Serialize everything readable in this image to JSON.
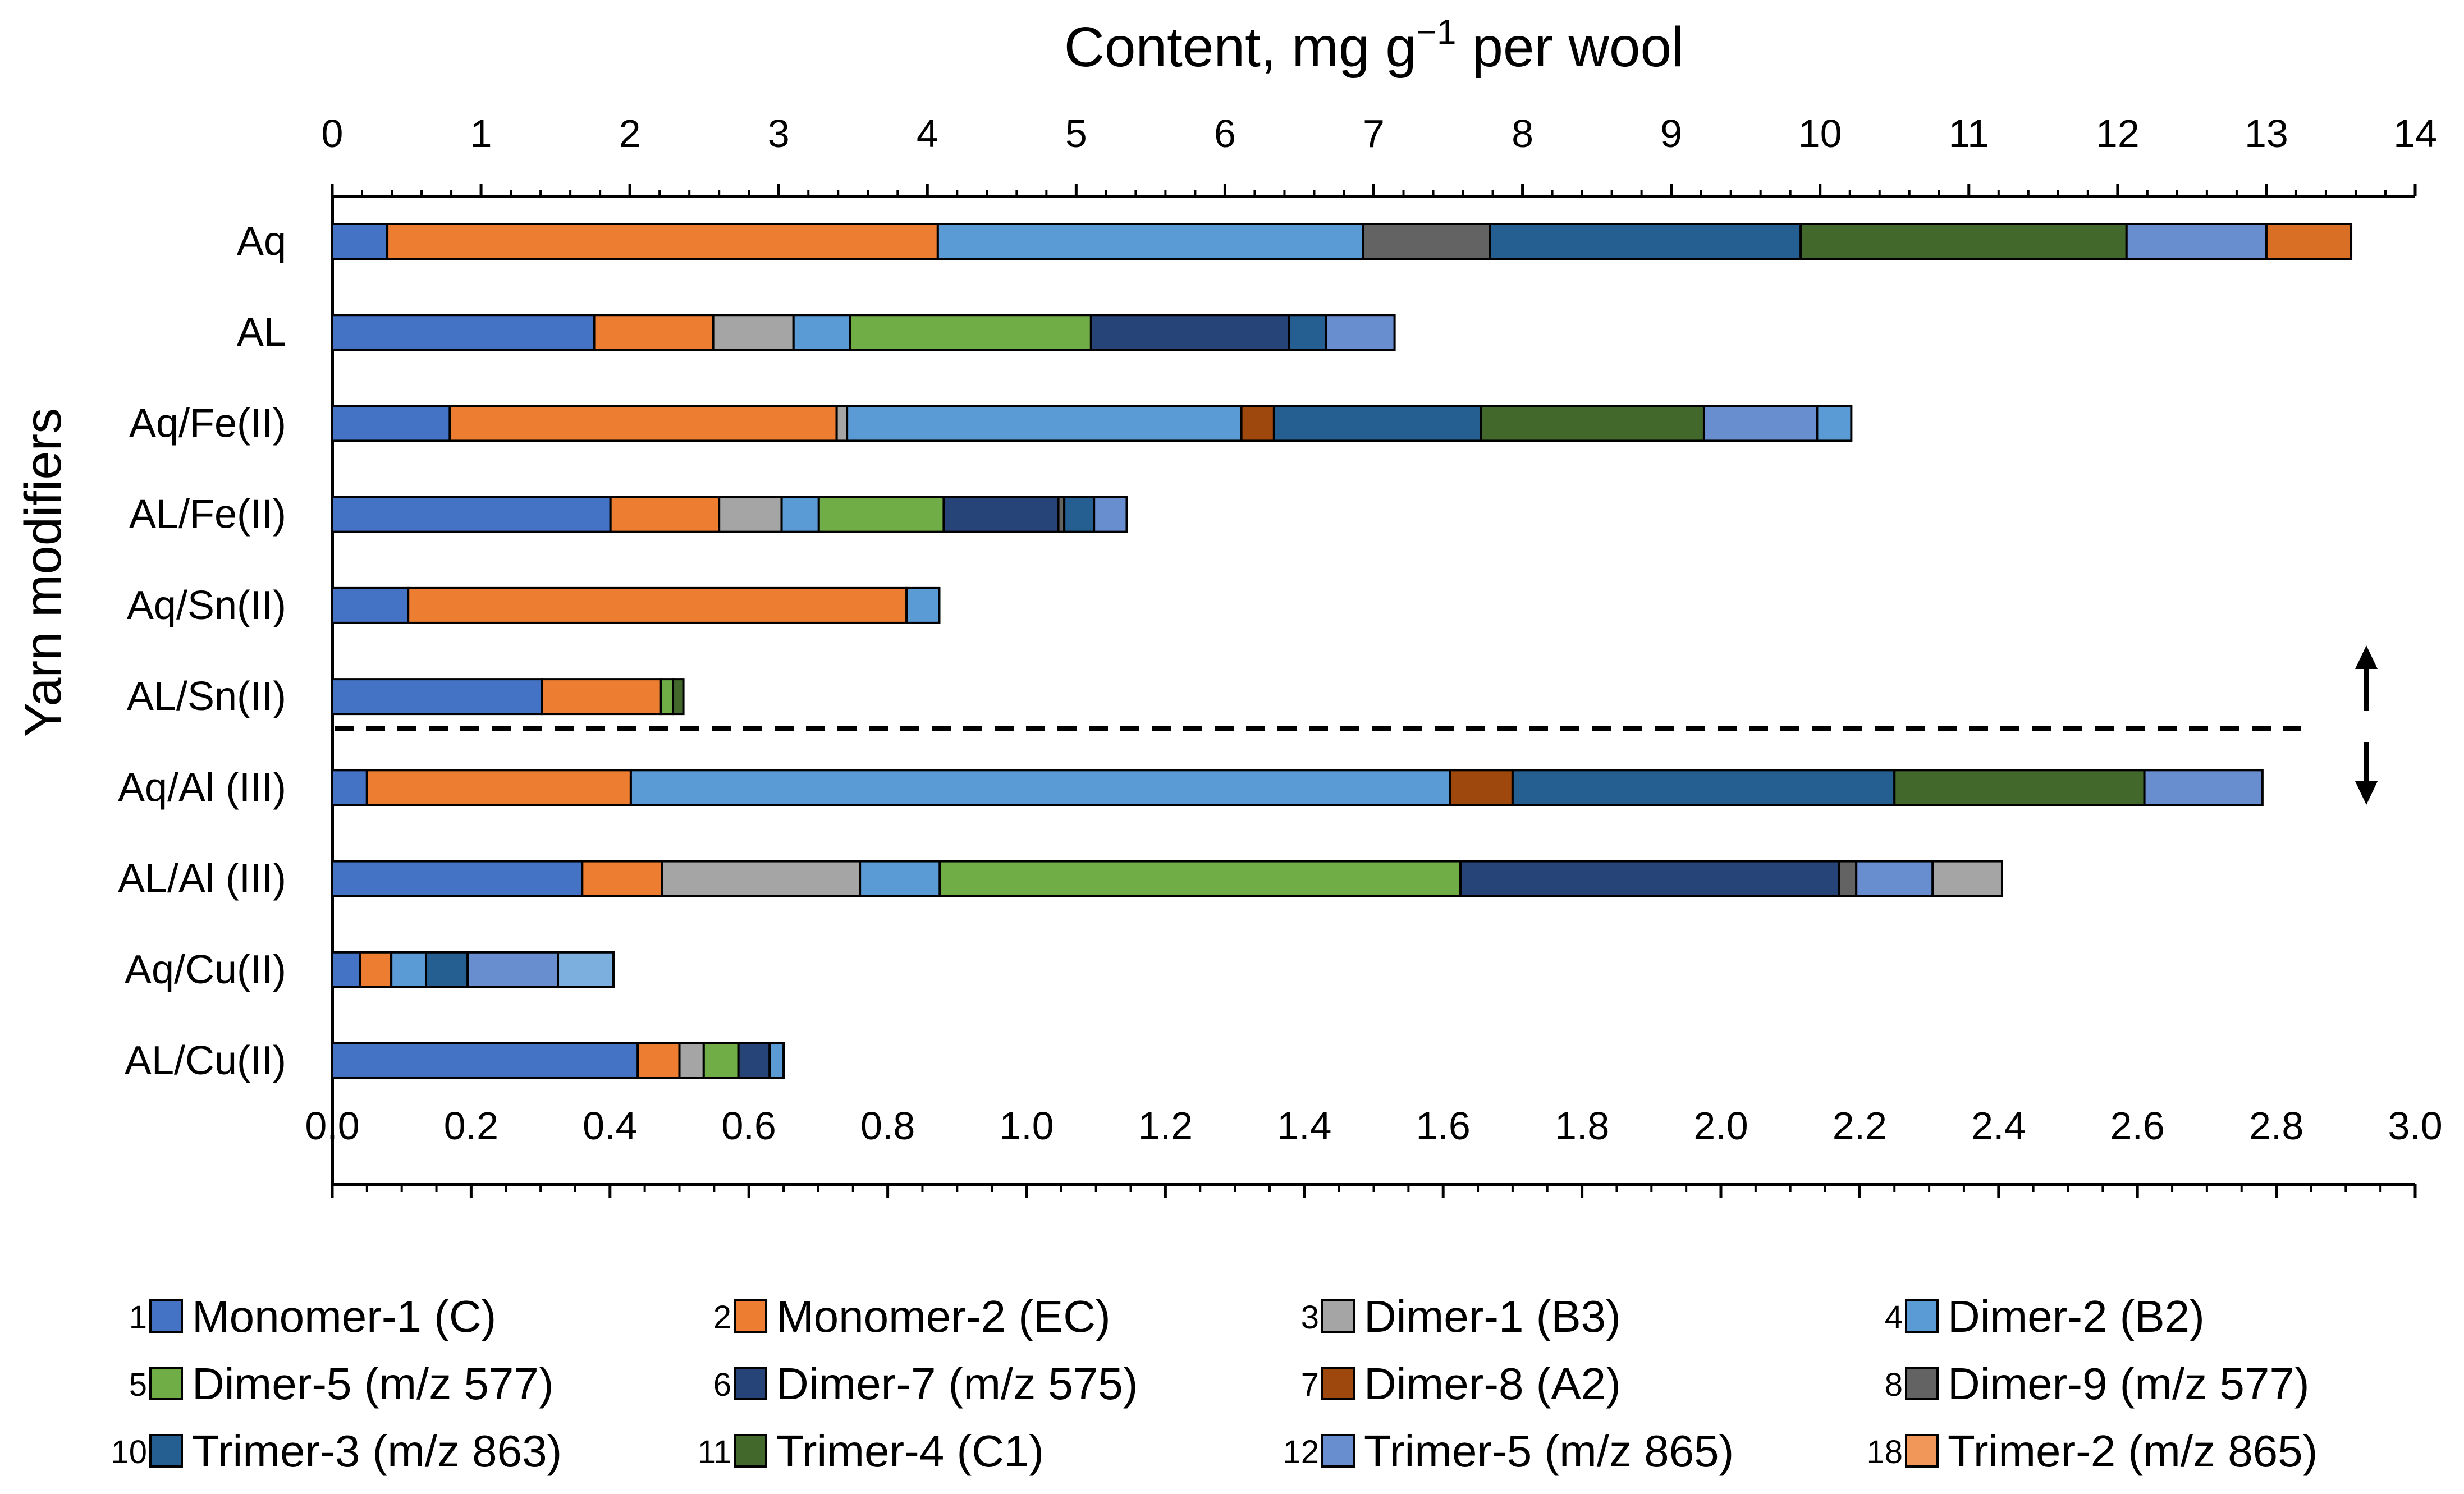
{
  "chart_data": {
    "type": "stacked-bar-horizontal",
    "title_main": "Content, mg g",
    "title_sup": "−1",
    "title_rest": " per wool",
    "ylabel": "Yarn modifiers",
    "top_axis": {
      "min": 0,
      "max": 14,
      "ticks": [
        "0",
        "1",
        "2",
        "3",
        "4",
        "5",
        "6",
        "7",
        "8",
        "9",
        "10",
        "11",
        "12",
        "13",
        "14"
      ]
    },
    "bottom_axis": {
      "min": 0,
      "max": 3.0,
      "ticks": [
        "0.0",
        "0.2",
        "0.4",
        "0.6",
        "0.8",
        "1.0",
        "1.2",
        "1.4",
        "1.6",
        "1.8",
        "2.0",
        "2.2",
        "2.4",
        "2.6",
        "2.8",
        "3.0"
      ]
    },
    "separator_note": "upper six bars read on top axis; lower four on bottom axis",
    "legend": [
      {
        "num": "1",
        "key": "m1",
        "label": "Monomer-1 (C)",
        "color": "#4472C4"
      },
      {
        "num": "2",
        "key": "m2",
        "label": "Monomer-2 (EC)",
        "color": "#ED7D31"
      },
      {
        "num": "3",
        "key": "d1",
        "label": "Dimer-1 (B3)",
        "color": "#A5A5A5"
      },
      {
        "num": "4",
        "key": "d2",
        "label": "Dimer-2 (B2)",
        "color": "#5B9BD5"
      },
      {
        "num": "5",
        "key": "d5",
        "label": "Dimer-5 (m/z 577)",
        "color": "#70AD47"
      },
      {
        "num": "6",
        "key": "d7",
        "label": "Dimer-7 (m/z 575)",
        "color": "#264478"
      },
      {
        "num": "7",
        "key": "d8",
        "label": "Dimer-8 (A2)",
        "color": "#9E480E"
      },
      {
        "num": "8",
        "key": "d9",
        "label": "Dimer-9 (m/z 577)",
        "color": "#636363"
      },
      {
        "num": "10",
        "key": "t3",
        "label": "Trimer-3 (m/z 863)",
        "color": "#255E91"
      },
      {
        "num": "11",
        "key": "t4",
        "label": "Trimer-4 (C1)",
        "color": "#43682B"
      },
      {
        "num": "12",
        "key": "t5",
        "label": "Trimer-5 (m/z 865)",
        "color": "#698ED0"
      },
      {
        "num": "18",
        "key": "t2",
        "label": "Trimer-2 (m/z 865)",
        "color": "#F1975A"
      }
    ],
    "extra_colors": {
      "t2_bar": "#D86F25",
      "aqcu_last": "#7CAFDD"
    },
    "bars": [
      {
        "label": "Aq",
        "axis": "top",
        "segments": [
          {
            "key": "m1",
            "value": 0.37
          },
          {
            "key": "m2",
            "value": 3.7
          },
          {
            "key": "d2",
            "value": 2.86
          },
          {
            "key": "d9",
            "value": 0.85
          },
          {
            "key": "t3",
            "value": 2.09
          },
          {
            "key": "t4",
            "value": 2.19
          },
          {
            "key": "t5",
            "value": 0.94
          },
          {
            "key": "t2",
            "value": 0.57
          }
        ]
      },
      {
        "label": "AL",
        "axis": "top",
        "segments": [
          {
            "key": "m1",
            "value": 1.76
          },
          {
            "key": "m2",
            "value": 0.8
          },
          {
            "key": "d1",
            "value": 0.54
          },
          {
            "key": "d2",
            "value": 0.38
          },
          {
            "key": "d5",
            "value": 1.62
          },
          {
            "key": "d7",
            "value": 1.33
          },
          {
            "key": "t3",
            "value": 0.25
          },
          {
            "key": "t5",
            "value": 0.46
          }
        ]
      },
      {
        "label": "Aq/Fe(II)",
        "axis": "top",
        "segments": [
          {
            "key": "m1",
            "value": 0.79
          },
          {
            "key": "m2",
            "value": 2.6
          },
          {
            "key": "d1",
            "value": 0.07
          },
          {
            "key": "d2",
            "value": 2.65
          },
          {
            "key": "d8",
            "value": 0.22
          },
          {
            "key": "t3",
            "value": 1.39
          },
          {
            "key": "t4",
            "value": 1.5
          },
          {
            "key": "t5",
            "value": 0.76
          },
          {
            "key": "d2",
            "value": 0.23
          }
        ]
      },
      {
        "label": "AL/Fe(II)",
        "axis": "top",
        "segments": [
          {
            "key": "m1",
            "value": 1.87
          },
          {
            "key": "m2",
            "value": 0.73
          },
          {
            "key": "d1",
            "value": 0.42
          },
          {
            "key": "d2",
            "value": 0.25
          },
          {
            "key": "d5",
            "value": 0.84
          },
          {
            "key": "d7",
            "value": 0.77
          },
          {
            "key": "d9",
            "value": 0.04
          },
          {
            "key": "t3",
            "value": 0.2
          },
          {
            "key": "t5",
            "value": 0.22
          }
        ]
      },
      {
        "label": "Aq/Sn(II)",
        "axis": "top",
        "segments": [
          {
            "key": "m1",
            "value": 0.51
          },
          {
            "key": "m2",
            "value": 3.35
          },
          {
            "key": "d2",
            "value": 0.22
          }
        ]
      },
      {
        "label": "AL/Sn(II)",
        "axis": "top",
        "segments": [
          {
            "key": "m1",
            "value": 1.41
          },
          {
            "key": "m2",
            "value": 0.8
          },
          {
            "key": "d5",
            "value": 0.08
          },
          {
            "key": "t4",
            "value": 0.07
          }
        ]
      },
      {
        "label": "Aq/Al (III)",
        "axis": "bottom",
        "segments": [
          {
            "key": "m1",
            "value": 0.05
          },
          {
            "key": "m2",
            "value": 0.38
          },
          {
            "key": "d2",
            "value": 1.18
          },
          {
            "key": "d8",
            "value": 0.09
          },
          {
            "key": "t3",
            "value": 0.55
          },
          {
            "key": "t4",
            "value": 0.36
          },
          {
            "key": "t5",
            "value": 0.17
          }
        ]
      },
      {
        "label": "AL/Al (III)",
        "axis": "bottom",
        "segments": [
          {
            "key": "m1",
            "value": 0.36
          },
          {
            "key": "m2",
            "value": 0.115
          },
          {
            "key": "d1",
            "value": 0.285
          },
          {
            "key": "d2",
            "value": 0.115
          },
          {
            "key": "d5",
            "value": 0.75
          },
          {
            "key": "d7",
            "value": 0.545
          },
          {
            "key": "d9",
            "value": 0.025
          },
          {
            "key": "t5",
            "value": 0.11
          },
          {
            "key": "d1",
            "value": 0.1
          }
        ]
      },
      {
        "label": "Aq/Cu(II)",
        "axis": "bottom",
        "segments": [
          {
            "key": "m1",
            "value": 0.04
          },
          {
            "key": "m2",
            "value": 0.045
          },
          {
            "key": "d2",
            "value": 0.05
          },
          {
            "key": "t3",
            "value": 0.06
          },
          {
            "key": "t5",
            "value": 0.13
          },
          {
            "key": "aqcu_last",
            "value": 0.08
          }
        ]
      },
      {
        "label": "AL/Cu(II)",
        "axis": "bottom",
        "segments": [
          {
            "key": "m1",
            "value": 0.44
          },
          {
            "key": "m2",
            "value": 0.06
          },
          {
            "key": "d1",
            "value": 0.035
          },
          {
            "key": "d5",
            "value": 0.05
          },
          {
            "key": "d7",
            "value": 0.045
          },
          {
            "key": "d2",
            "value": 0.02
          }
        ]
      }
    ]
  }
}
